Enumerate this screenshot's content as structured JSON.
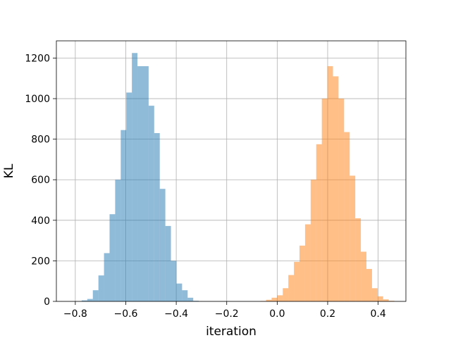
{
  "chart_data": {
    "type": "bar",
    "subtype": "histogram",
    "xlabel": "iteration",
    "ylabel": "KL",
    "xlim": [
      -0.875,
      0.51
    ],
    "ylim": [
      0,
      1285
    ],
    "xticks": [
      -0.8,
      -0.6,
      -0.4,
      -0.2,
      0.0,
      0.2,
      0.4
    ],
    "xtick_labels": [
      "−0.8",
      "−0.6",
      "−0.4",
      "−0.2",
      "0.0",
      "0.2",
      "0.4"
    ],
    "yticks": [
      0,
      200,
      400,
      600,
      800,
      1000,
      1200
    ],
    "ytick_labels": [
      "0",
      "200",
      "400",
      "600",
      "800",
      "1000",
      "1200"
    ],
    "grid": true,
    "alpha": 0.5,
    "series": [
      {
        "color": "#1f77b4",
        "bins": [
          {
            "x0": -0.7747,
            "x1": -0.7526,
            "count": 5
          },
          {
            "x0": -0.7526,
            "x1": -0.7305,
            "count": 12
          },
          {
            "x0": -0.7305,
            "x1": -0.7084,
            "count": 55
          },
          {
            "x0": -0.7084,
            "x1": -0.6863,
            "count": 128
          },
          {
            "x0": -0.6863,
            "x1": -0.6642,
            "count": 238
          },
          {
            "x0": -0.6642,
            "x1": -0.6421,
            "count": 430
          },
          {
            "x0": -0.6421,
            "x1": -0.62,
            "count": 600
          },
          {
            "x0": -0.62,
            "x1": -0.5979,
            "count": 845
          },
          {
            "x0": -0.5979,
            "x1": -0.5758,
            "count": 1030
          },
          {
            "x0": -0.5758,
            "x1": -0.5537,
            "count": 1225
          },
          {
            "x0": -0.5537,
            "x1": -0.5316,
            "count": 1160
          },
          {
            "x0": -0.5316,
            "x1": -0.5095,
            "count": 1160
          },
          {
            "x0": -0.5095,
            "x1": -0.4874,
            "count": 965
          },
          {
            "x0": -0.4874,
            "x1": -0.4653,
            "count": 830
          },
          {
            "x0": -0.4653,
            "x1": -0.4432,
            "count": 555
          },
          {
            "x0": -0.4432,
            "x1": -0.4211,
            "count": 372
          },
          {
            "x0": -0.4211,
            "x1": -0.399,
            "count": 200
          },
          {
            "x0": -0.399,
            "x1": -0.3769,
            "count": 88
          },
          {
            "x0": -0.3769,
            "x1": -0.3548,
            "count": 55
          },
          {
            "x0": -0.3548,
            "x1": -0.3327,
            "count": 18
          },
          {
            "x0": -0.3327,
            "x1": -0.3106,
            "count": 3
          }
        ]
      },
      {
        "color": "#ff7f0e",
        "bins": [
          {
            "x0": -0.0663,
            "x1": -0.0442,
            "count": 2
          },
          {
            "x0": -0.0442,
            "x1": -0.0221,
            "count": 8
          },
          {
            "x0": -0.0221,
            "x1": 0.0,
            "count": 18
          },
          {
            "x0": 0.0,
            "x1": 0.0221,
            "count": 30
          },
          {
            "x0": 0.0221,
            "x1": 0.0442,
            "count": 65
          },
          {
            "x0": 0.0442,
            "x1": 0.0663,
            "count": 130
          },
          {
            "x0": 0.0663,
            "x1": 0.0884,
            "count": 195
          },
          {
            "x0": 0.0884,
            "x1": 0.1105,
            "count": 275
          },
          {
            "x0": 0.1105,
            "x1": 0.1326,
            "count": 380
          },
          {
            "x0": 0.1326,
            "x1": 0.1547,
            "count": 600
          },
          {
            "x0": 0.1547,
            "x1": 0.1768,
            "count": 775
          },
          {
            "x0": 0.1768,
            "x1": 0.1989,
            "count": 1000
          },
          {
            "x0": 0.1989,
            "x1": 0.221,
            "count": 1160
          },
          {
            "x0": 0.221,
            "x1": 0.2431,
            "count": 1110
          },
          {
            "x0": 0.2431,
            "x1": 0.2652,
            "count": 1000
          },
          {
            "x0": 0.2652,
            "x1": 0.2873,
            "count": 835
          },
          {
            "x0": 0.2873,
            "x1": 0.3094,
            "count": 620
          },
          {
            "x0": 0.3094,
            "x1": 0.3315,
            "count": 410
          },
          {
            "x0": 0.3315,
            "x1": 0.3536,
            "count": 245
          },
          {
            "x0": 0.3536,
            "x1": 0.3757,
            "count": 160
          },
          {
            "x0": 0.3757,
            "x1": 0.3978,
            "count": 65
          },
          {
            "x0": 0.3978,
            "x1": 0.4199,
            "count": 25
          },
          {
            "x0": 0.4199,
            "x1": 0.442,
            "count": 10
          },
          {
            "x0": 0.442,
            "x1": 0.4641,
            "count": 3
          }
        ]
      }
    ]
  }
}
